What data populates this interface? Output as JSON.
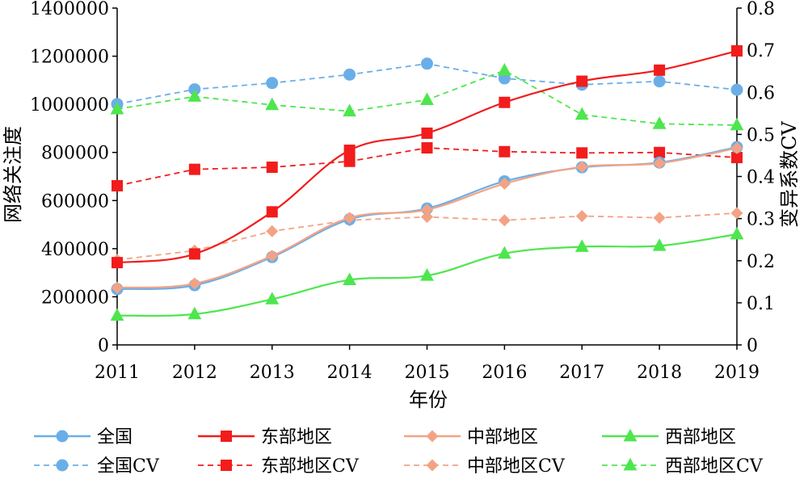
{
  "chart_data": {
    "type": "line",
    "title": "",
    "xlabel": "年份",
    "ylabel_left": "网络关注度",
    "ylabel_right": "变异系数CV",
    "categories": [
      "2011",
      "2012",
      "2013",
      "2014",
      "2015",
      "2016",
      "2017",
      "2018",
      "2019"
    ],
    "ylim_left": [
      0,
      1400000
    ],
    "ylim_right": [
      0,
      0.8
    ],
    "yticks_left": [
      "0",
      "200000",
      "400000",
      "600000",
      "800000",
      "1000000",
      "1200000",
      "1400000"
    ],
    "yticks_right": [
      "0",
      "0.1",
      "0.2",
      "0.3",
      "0.4",
      "0.5",
      "0.6",
      "0.7",
      "0.8"
    ],
    "grid": false,
    "legend_position": "bottom",
    "series": [
      {
        "name": "全国",
        "axis": "left",
        "style": "solid",
        "marker": "circle",
        "color": "#6aaee8",
        "values": [
          232000,
          248000,
          365000,
          522000,
          567000,
          680000,
          738000,
          758000,
          822000
        ]
      },
      {
        "name": "东部地区",
        "axis": "left",
        "style": "solid",
        "marker": "square",
        "color": "#f21c1c",
        "values": [
          342000,
          378000,
          553000,
          809000,
          880000,
          1008000,
          1096000,
          1142000,
          1222000
        ]
      },
      {
        "name": "中部地区",
        "axis": "left",
        "style": "solid",
        "marker": "diamond",
        "color": "#f3a384",
        "values": [
          238000,
          255000,
          370000,
          528000,
          562000,
          670000,
          740000,
          755000,
          818000
        ]
      },
      {
        "name": "西部地区",
        "axis": "left",
        "style": "solid",
        "marker": "triangle",
        "color": "#4ee64e",
        "values": [
          122000,
          128000,
          190000,
          270000,
          288000,
          380000,
          408000,
          412000,
          460000
        ]
      },
      {
        "name": "全国CV",
        "axis": "right",
        "style": "dashed",
        "marker": "circle",
        "color": "#6aaee8",
        "values": [
          0.572,
          0.607,
          0.622,
          0.642,
          0.668,
          0.633,
          0.618,
          0.626,
          0.606
        ]
      },
      {
        "name": "东部地区CV",
        "axis": "right",
        "style": "dashed",
        "marker": "square",
        "color": "#f21c1c",
        "values": [
          0.378,
          0.417,
          0.422,
          0.436,
          0.468,
          0.459,
          0.456,
          0.457,
          0.445
        ]
      },
      {
        "name": "中部地区CV",
        "axis": "right",
        "style": "dashed",
        "marker": "diamond",
        "color": "#f3a384",
        "values": [
          0.202,
          0.224,
          0.27,
          0.296,
          0.304,
          0.296,
          0.306,
          0.302,
          0.313
        ]
      },
      {
        "name": "西部地区CV",
        "axis": "right",
        "style": "dashed",
        "marker": "triangle",
        "color": "#4ee64e",
        "values": [
          0.56,
          0.59,
          0.57,
          0.555,
          0.582,
          0.652,
          0.547,
          0.525,
          0.522
        ]
      }
    ]
  }
}
